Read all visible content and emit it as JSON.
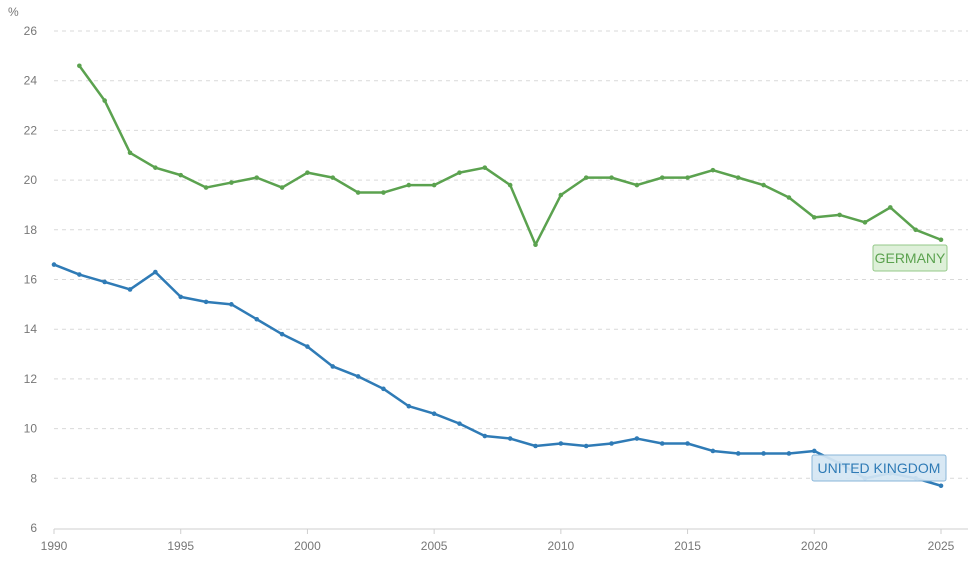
{
  "chart_data": {
    "type": "line",
    "unit_label": "%",
    "xlim": [
      1990,
      2025
    ],
    "ylim": [
      6,
      26
    ],
    "x_ticks": [
      1990,
      1995,
      2000,
      2005,
      2010,
      2015,
      2020,
      2025
    ],
    "y_ticks": [
      6,
      8,
      10,
      12,
      14,
      16,
      18,
      20,
      22,
      24,
      26
    ],
    "grid": true,
    "series": [
      {
        "name": "GERMANY",
        "color": "#5ba24f",
        "label_fill": "#dcefd6",
        "label_border": "#8cc47f",
        "x": [
          1991,
          1992,
          1993,
          1994,
          1995,
          1996,
          1997,
          1998,
          1999,
          2000,
          2001,
          2002,
          2003,
          2004,
          2005,
          2006,
          2007,
          2008,
          2009,
          2010,
          2011,
          2012,
          2013,
          2014,
          2015,
          2016,
          2017,
          2018,
          2019,
          2020,
          2021,
          2022,
          2023,
          2024,
          2025
        ],
        "values": [
          24.6,
          23.2,
          21.1,
          20.5,
          20.2,
          19.7,
          19.9,
          20.1,
          19.7,
          20.3,
          20.1,
          19.5,
          19.5,
          19.8,
          19.8,
          20.3,
          20.5,
          19.8,
          17.4,
          19.4,
          20.1,
          20.1,
          19.8,
          20.1,
          20.1,
          20.4,
          20.1,
          19.8,
          19.3,
          18.5,
          18.6,
          18.3,
          18.9,
          18.0,
          17.6
        ]
      },
      {
        "name": "UNITED KINGDOM",
        "color": "#2f7bb6",
        "label_fill": "#d5e7f4",
        "label_border": "#7fb0d6",
        "x": [
          1990,
          1991,
          1992,
          1993,
          1994,
          1995,
          1996,
          1997,
          1998,
          1999,
          2000,
          2001,
          2002,
          2003,
          2004,
          2005,
          2006,
          2007,
          2008,
          2009,
          2010,
          2011,
          2012,
          2013,
          2014,
          2015,
          2016,
          2017,
          2018,
          2019,
          2020,
          2021,
          2022,
          2023,
          2024,
          2025
        ],
        "values": [
          16.6,
          16.2,
          15.9,
          15.6,
          16.3,
          15.3,
          15.1,
          15.0,
          14.4,
          13.8,
          13.3,
          12.5,
          12.1,
          11.6,
          10.9,
          10.6,
          10.2,
          9.7,
          9.6,
          9.3,
          9.4,
          9.3,
          9.4,
          9.6,
          9.4,
          9.4,
          9.1,
          9.0,
          9.0,
          9.0,
          9.1,
          8.6,
          8.0,
          8.2,
          8.0,
          7.7
        ]
      }
    ]
  }
}
